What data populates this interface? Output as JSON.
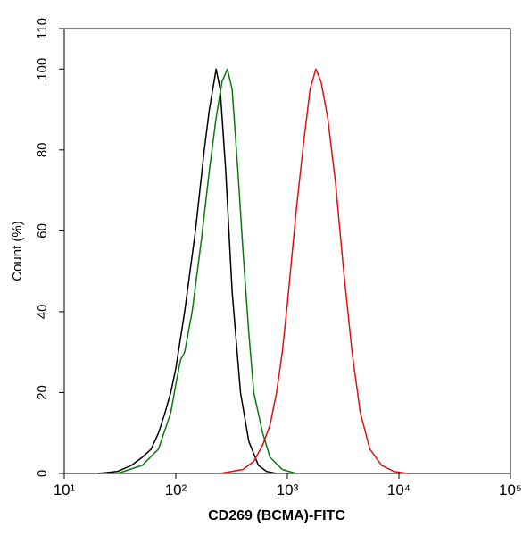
{
  "chart_data": {
    "type": "line",
    "x_label": "CD269 (BCMA)-FITC",
    "y_label": "Count  (%)",
    "xscale": "log",
    "xlim": [
      10,
      100000
    ],
    "xticks": [
      {
        "value": 10,
        "label": "10¹"
      },
      {
        "value": 100,
        "label": "10²"
      },
      {
        "value": 1000,
        "label": "10³"
      },
      {
        "value": 10000,
        "label": "10⁴"
      },
      {
        "value": 100000,
        "label": "10⁵"
      }
    ],
    "ylim": [
      0,
      110
    ],
    "yticks": [
      0,
      20,
      40,
      60,
      80,
      100,
      110
    ],
    "series": [
      {
        "color": "#000000",
        "x": [
          20,
          30,
          40,
          50,
          60,
          70,
          80,
          90,
          100,
          120,
          150,
          180,
          200,
          230,
          250,
          280,
          320,
          380,
          450,
          550,
          650,
          800
        ],
        "values": [
          0,
          0.5,
          2,
          4,
          6,
          10,
          15,
          20,
          26,
          40,
          60,
          80,
          90,
          100,
          95,
          75,
          45,
          20,
          8,
          2,
          0.5,
          0
        ]
      },
      {
        "color": "#0a7a0a",
        "x": [
          30,
          50,
          70,
          90,
          100,
          110,
          120,
          140,
          170,
          200,
          230,
          260,
          290,
          320,
          360,
          400,
          450,
          500,
          600,
          700,
          900,
          1200
        ],
        "values": [
          0,
          2,
          6,
          15,
          22,
          28,
          30,
          40,
          58,
          75,
          88,
          97,
          100,
          95,
          75,
          55,
          35,
          20,
          10,
          4,
          1,
          0
        ]
      },
      {
        "color": "#e01010",
        "x": [
          250,
          400,
          500,
          600,
          700,
          800,
          900,
          1000,
          1200,
          1400,
          1600,
          1800,
          2000,
          2300,
          2700,
          3200,
          3800,
          4500,
          5500,
          7000,
          9000,
          12000
        ],
        "values": [
          0,
          1,
          3,
          7,
          12,
          20,
          30,
          42,
          65,
          82,
          95,
          100,
          97,
          88,
          72,
          50,
          30,
          15,
          6,
          2,
          0.5,
          0
        ]
      }
    ]
  }
}
